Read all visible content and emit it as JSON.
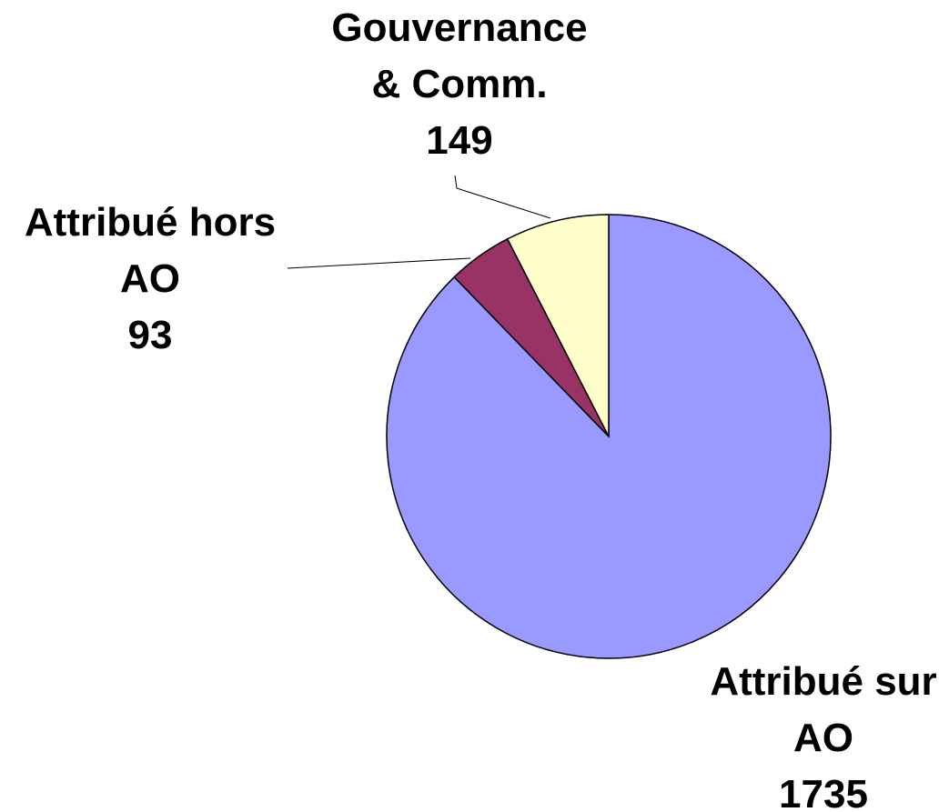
{
  "chart_data": {
    "type": "pie",
    "categories": [
      "Attribué sur AO",
      "Attribué hors AO",
      "Gouvernance & Comm."
    ],
    "values": [
      1735,
      93,
      149
    ],
    "colors": [
      "#9999ff",
      "#993366",
      "#ffffcc"
    ],
    "start_angle": 0,
    "direction": "clockwise"
  }
}
